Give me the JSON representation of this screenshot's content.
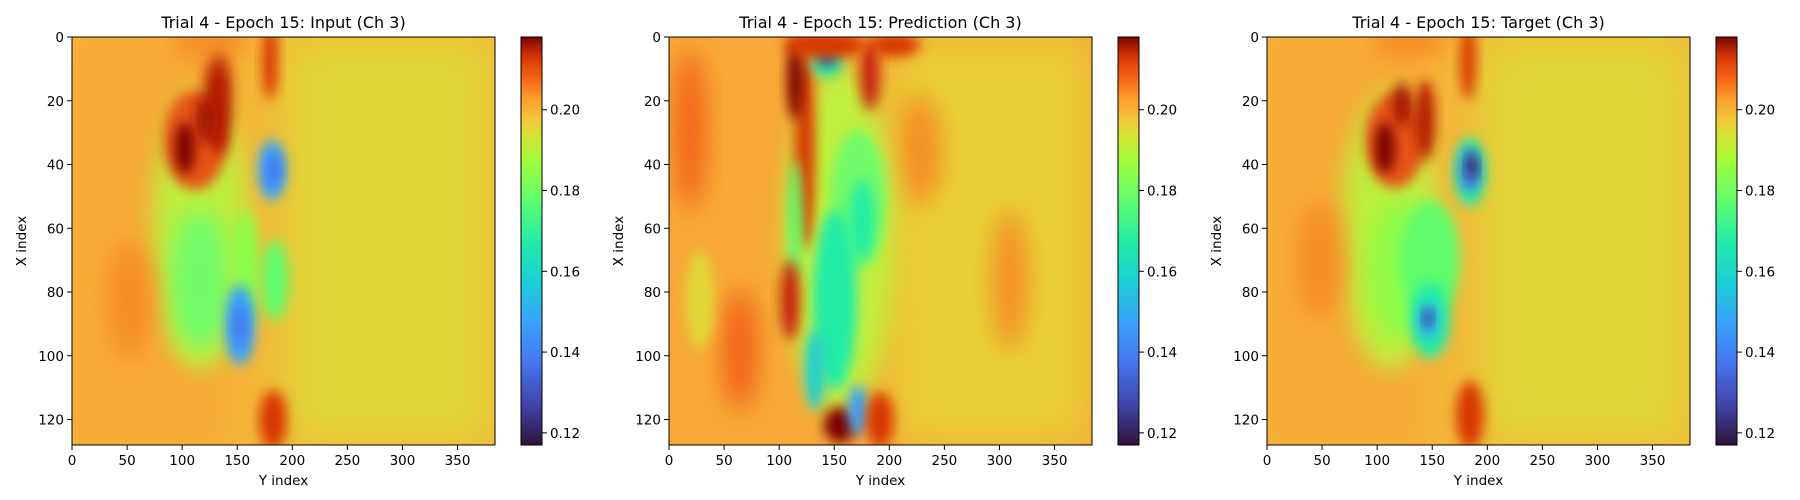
{
  "chart_data": [
    {
      "type": "heatmap",
      "title": "Trial 4 - Epoch 15: Input (Ch 3)",
      "xlabel": "Y index",
      "ylabel": "X index",
      "x_ticks": [
        0,
        50,
        100,
        150,
        200,
        250,
        300,
        350
      ],
      "y_ticks": [
        0,
        20,
        40,
        60,
        80,
        100,
        120
      ],
      "xlim": [
        0,
        384
      ],
      "ylim": [
        128,
        0
      ],
      "colormap": "turbo",
      "colorbar": {
        "range": [
          0.117,
          0.218
        ],
        "ticks": [
          0.12,
          0.14,
          0.16,
          0.18,
          0.2
        ],
        "tick_labels": [
          "0.12",
          "0.14",
          "0.16",
          "0.18",
          "0.20"
        ]
      },
      "background_value": 0.185,
      "features": [
        {
          "kind": "high",
          "x": 155,
          "y": 28,
          "value": 0.215
        },
        {
          "kind": "high",
          "x": 178,
          "y": 18,
          "value": 0.205
        },
        {
          "kind": "high",
          "x": 215,
          "y": 122,
          "value": 0.2
        },
        {
          "kind": "low",
          "x": 182,
          "y": 40,
          "value": 0.14
        },
        {
          "kind": "low",
          "x": 148,
          "y": 92,
          "value": 0.145
        },
        {
          "kind": "low",
          "x": 150,
          "y": 60,
          "value": 0.165
        },
        {
          "kind": "low",
          "x": 195,
          "y": 80,
          "value": 0.165
        }
      ]
    },
    {
      "type": "heatmap",
      "title": "Trial 4 - Epoch 15: Prediction (Ch 3)",
      "xlabel": "Y index",
      "ylabel": "X index",
      "x_ticks": [
        0,
        50,
        100,
        150,
        200,
        250,
        300,
        350
      ],
      "y_ticks": [
        0,
        20,
        40,
        60,
        80,
        100,
        120
      ],
      "xlim": [
        0,
        384
      ],
      "ylim": [
        128,
        0
      ],
      "colormap": "turbo",
      "colorbar": {
        "range": [
          0.117,
          0.218
        ],
        "ticks": [
          0.12,
          0.14,
          0.16,
          0.18,
          0.2
        ],
        "tick_labels": [
          "0.12",
          "0.14",
          "0.16",
          "0.18",
          "0.20"
        ]
      },
      "background_value": 0.19,
      "features": [
        {
          "kind": "low",
          "x": 140,
          "y": 6,
          "value": 0.14
        },
        {
          "kind": "high",
          "x": 150,
          "y": 112,
          "value": 0.215
        },
        {
          "kind": "high",
          "x": 130,
          "y": 30,
          "value": 0.205
        },
        {
          "kind": "low",
          "x": 170,
          "y": 45,
          "value": 0.16
        },
        {
          "kind": "low",
          "x": 150,
          "y": 105,
          "value": 0.15
        },
        {
          "kind": "low",
          "x": 120,
          "y": 75,
          "value": 0.16
        }
      ]
    },
    {
      "type": "heatmap",
      "title": "Trial 4 - Epoch 15: Target (Ch 3)",
      "xlabel": "Y index",
      "ylabel": "X index",
      "x_ticks": [
        0,
        50,
        100,
        150,
        200,
        250,
        300,
        350
      ],
      "y_ticks": [
        0,
        20,
        40,
        60,
        80,
        100,
        120
      ],
      "xlim": [
        0,
        384
      ],
      "ylim": [
        128,
        0
      ],
      "colormap": "turbo",
      "colorbar": {
        "range": [
          0.117,
          0.218
        ],
        "ticks": [
          0.12,
          0.14,
          0.16,
          0.18,
          0.2
        ],
        "tick_labels": [
          "0.12",
          "0.14",
          "0.16",
          "0.18",
          "0.20"
        ]
      },
      "background_value": 0.185,
      "features": [
        {
          "kind": "high",
          "x": 145,
          "y": 30,
          "value": 0.215
        },
        {
          "kind": "high",
          "x": 180,
          "y": 22,
          "value": 0.205
        },
        {
          "kind": "high",
          "x": 215,
          "y": 118,
          "value": 0.2
        },
        {
          "kind": "low",
          "x": 183,
          "y": 42,
          "value": 0.125
        },
        {
          "kind": "low",
          "x": 140,
          "y": 88,
          "value": 0.13
        },
        {
          "kind": "low",
          "x": 150,
          "y": 60,
          "value": 0.165
        }
      ]
    }
  ]
}
